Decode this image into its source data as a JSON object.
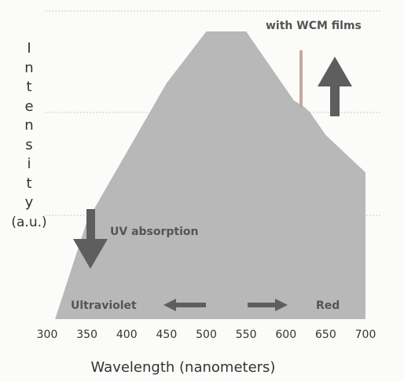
{
  "chart_data": {
    "type": "area",
    "xlabel": "Wavelength (nanometers)",
    "ylabel_letters": [
      "I",
      "n",
      "t",
      "e",
      "n",
      "s",
      "i",
      "t",
      "y"
    ],
    "ylabel_unit": "(a.u.)",
    "xlim": [
      300,
      700
    ],
    "ylim": [
      0,
      100
    ],
    "x_ticks": [
      "300",
      "350",
      "400",
      "450",
      "500",
      "550",
      "600",
      "650",
      "700"
    ],
    "grid": "horizontal dashed",
    "x": [
      310,
      350,
      400,
      450,
      500,
      550,
      610,
      616,
      617,
      621,
      622,
      630,
      650,
      700
    ],
    "y": [
      0,
      34,
      58,
      82,
      100,
      100,
      76,
      74,
      100,
      100,
      74,
      72,
      64,
      51
    ],
    "annotations": {
      "with_wcm": "with WCM films",
      "uv_absorption": "UV absorption",
      "ultraviolet": "Ultraviolet",
      "red": "Red"
    },
    "colors": {
      "area": "#b8b8b8",
      "arrow": "#5e5e5e",
      "spike": "#c4a99e",
      "grid": "#bdbdbd",
      "text": "#555555"
    }
  }
}
